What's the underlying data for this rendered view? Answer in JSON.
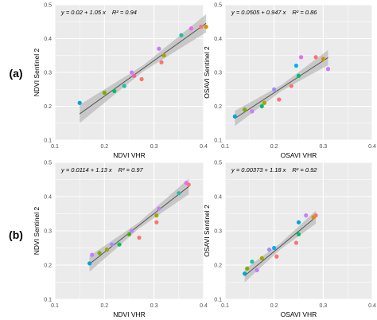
{
  "rows": [
    {
      "label": "(a)"
    },
    {
      "label": "(b)"
    }
  ],
  "colors": {
    "panel_bg": "#ebebeb",
    "grid": "#ffffff",
    "fit_line": "#555555",
    "ribbon": "#b3b3b3",
    "points": [
      "#00a6cc",
      "#7cae00",
      "#00be67",
      "#22bfa5",
      "#c77cff",
      "#f0619a",
      "#f8766d",
      "#d89000",
      "#a3a500",
      "#e76bf3",
      "#a58aff",
      "#00b0f6",
      "#39b600"
    ]
  },
  "chart_data": [
    {
      "type": "scatter",
      "panel": "a-ndvi",
      "equation": "y = 0.02 + 1.05 x",
      "r2": "R² = 0.94",
      "xlabel": "NDVI VHR",
      "ylabel": "NDVI Sentinel 2",
      "xlim": [
        0.1,
        0.4
      ],
      "ylim": [
        0.1,
        0.5
      ],
      "xticks": [
        "0.1",
        "0.2",
        "0.3",
        "0.4"
      ],
      "yticks": [
        "0.1",
        "0.2",
        "0.3",
        "0.4",
        "0.5"
      ],
      "fit": {
        "intercept": 0.02,
        "slope": 1.05
      },
      "points": [
        {
          "x": 0.15,
          "y": 0.21,
          "c": 0
        },
        {
          "x": 0.2,
          "y": 0.24,
          "c": 1
        },
        {
          "x": 0.22,
          "y": 0.245,
          "c": 2
        },
        {
          "x": 0.24,
          "y": 0.26,
          "c": 3
        },
        {
          "x": 0.255,
          "y": 0.3,
          "c": 4
        },
        {
          "x": 0.26,
          "y": 0.29,
          "c": 5
        },
        {
          "x": 0.275,
          "y": 0.28,
          "c": 6
        },
        {
          "x": 0.31,
          "y": 0.37,
          "c": 4
        },
        {
          "x": 0.315,
          "y": 0.33,
          "c": 6
        },
        {
          "x": 0.32,
          "y": 0.35,
          "c": 8
        },
        {
          "x": 0.355,
          "y": 0.41,
          "c": 3
        },
        {
          "x": 0.375,
          "y": 0.43,
          "c": 9
        },
        {
          "x": 0.395,
          "y": 0.435,
          "c": 6
        },
        {
          "x": 0.405,
          "y": 0.435,
          "c": 7
        }
      ]
    },
    {
      "type": "scatter",
      "panel": "a-osavi",
      "equation": "y = 0.0505 + 0.947 x",
      "r2": "R² = 0.86",
      "xlabel": "OSAVI VHR",
      "ylabel": "OSAVI Sentinel 2",
      "xlim": [
        0.1,
        0.4
      ],
      "ylim": [
        0.1,
        0.5
      ],
      "xticks": [
        "0.1",
        "0.2",
        "0.3",
        "0.4"
      ],
      "yticks": [
        "0.1",
        "0.2",
        "0.3",
        "0.4",
        "0.5"
      ],
      "fit": {
        "intercept": 0.0505,
        "slope": 0.947
      },
      "points": [
        {
          "x": 0.12,
          "y": 0.17,
          "c": 0
        },
        {
          "x": 0.14,
          "y": 0.19,
          "c": 1
        },
        {
          "x": 0.155,
          "y": 0.185,
          "c": 4
        },
        {
          "x": 0.175,
          "y": 0.2,
          "c": 2
        },
        {
          "x": 0.18,
          "y": 0.21,
          "c": 8
        },
        {
          "x": 0.2,
          "y": 0.25,
          "c": 10
        },
        {
          "x": 0.21,
          "y": 0.22,
          "c": 6
        },
        {
          "x": 0.235,
          "y": 0.26,
          "c": 6
        },
        {
          "x": 0.245,
          "y": 0.32,
          "c": 11
        },
        {
          "x": 0.25,
          "y": 0.29,
          "c": 2
        },
        {
          "x": 0.255,
          "y": 0.345,
          "c": 9
        },
        {
          "x": 0.285,
          "y": 0.345,
          "c": 6
        },
        {
          "x": 0.3,
          "y": 0.34,
          "c": 7
        },
        {
          "x": 0.31,
          "y": 0.31,
          "c": 4
        }
      ]
    },
    {
      "type": "scatter",
      "panel": "b-ndvi",
      "equation": "y = 0.0114 + 1.13 x",
      "r2": "R² = 0.97",
      "xlabel": "NDVI VHR",
      "ylabel": "NDVI Sentinel 2",
      "xlim": [
        0.1,
        0.4
      ],
      "ylim": [
        0.1,
        0.5
      ],
      "xticks": [
        "0.1",
        "0.2",
        "0.3",
        "0.4"
      ],
      "yticks": [
        "0.1",
        "0.2",
        "0.3",
        "0.4",
        "0.5"
      ],
      "fit": {
        "intercept": 0.0114,
        "slope": 1.13
      },
      "points": [
        {
          "x": 0.17,
          "y": 0.205,
          "c": 0
        },
        {
          "x": 0.175,
          "y": 0.23,
          "c": 4
        },
        {
          "x": 0.19,
          "y": 0.235,
          "c": 1
        },
        {
          "x": 0.205,
          "y": 0.245,
          "c": 8
        },
        {
          "x": 0.215,
          "y": 0.26,
          "c": 10
        },
        {
          "x": 0.23,
          "y": 0.26,
          "c": 2
        },
        {
          "x": 0.25,
          "y": 0.29,
          "c": 12
        },
        {
          "x": 0.255,
          "y": 0.3,
          "c": 4
        },
        {
          "x": 0.27,
          "y": 0.28,
          "c": 6
        },
        {
          "x": 0.305,
          "y": 0.325,
          "c": 6
        },
        {
          "x": 0.305,
          "y": 0.345,
          "c": 8
        },
        {
          "x": 0.31,
          "y": 0.365,
          "c": 4
        },
        {
          "x": 0.35,
          "y": 0.41,
          "c": 3
        },
        {
          "x": 0.37,
          "y": 0.435,
          "c": 6
        },
        {
          "x": 0.365,
          "y": 0.44,
          "c": 9
        }
      ]
    },
    {
      "type": "scatter",
      "panel": "b-osavi",
      "equation": "y = 0.00373 + 1.18 x",
      "r2": "R² = 0.92",
      "xlabel": "OSAVI VHR",
      "ylabel": "OSAVI Sentinel 2",
      "xlim": [
        0.1,
        0.4
      ],
      "ylim": [
        0.1,
        0.5
      ],
      "xticks": [
        "0.1",
        "0.2",
        "0.3",
        "0.4"
      ],
      "yticks": [
        "0.1",
        "0.2",
        "0.3",
        "0.4",
        "0.5"
      ],
      "fit": {
        "intercept": 0.00373,
        "slope": 1.18
      },
      "points": [
        {
          "x": 0.14,
          "y": 0.175,
          "c": 0
        },
        {
          "x": 0.145,
          "y": 0.19,
          "c": 1
        },
        {
          "x": 0.155,
          "y": 0.21,
          "c": 3
        },
        {
          "x": 0.165,
          "y": 0.185,
          "c": 4
        },
        {
          "x": 0.175,
          "y": 0.22,
          "c": 8
        },
        {
          "x": 0.19,
          "y": 0.245,
          "c": 10
        },
        {
          "x": 0.205,
          "y": 0.225,
          "c": 6
        },
        {
          "x": 0.2,
          "y": 0.25,
          "c": 11
        },
        {
          "x": 0.245,
          "y": 0.265,
          "c": 6
        },
        {
          "x": 0.25,
          "y": 0.29,
          "c": 2
        },
        {
          "x": 0.25,
          "y": 0.325,
          "c": 0
        },
        {
          "x": 0.265,
          "y": 0.345,
          "c": 4
        },
        {
          "x": 0.28,
          "y": 0.34,
          "c": 7
        },
        {
          "x": 0.285,
          "y": 0.345,
          "c": 6
        }
      ]
    }
  ]
}
